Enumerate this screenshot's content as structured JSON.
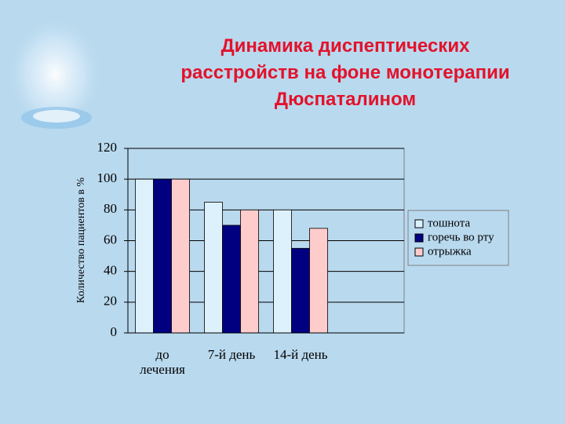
{
  "chart_data": {
    "type": "bar",
    "title": "Динамика диспептических\nрасстройств на фоне монотерапии\nДюспаталином",
    "y_label": "Количество пациентов в %",
    "categories": [
      "до\nлечения",
      "7-й день",
      "14-й день",
      null
    ],
    "series": [
      {
        "name": "тошнота",
        "color": "#ddf1fd",
        "values": [
          100,
          85,
          80,
          null
        ]
      },
      {
        "name": "горечь во рту",
        "color": "#000080",
        "values": [
          100,
          70,
          55,
          null
        ]
      },
      {
        "name": "отрыжка",
        "color": "#ffcccc",
        "values": [
          100,
          80,
          68,
          null
        ]
      }
    ],
    "ylim": [
      0,
      120
    ],
    "yticks": [
      0,
      20,
      40,
      60,
      80,
      100,
      120
    ],
    "grid": true,
    "legend": "right"
  }
}
